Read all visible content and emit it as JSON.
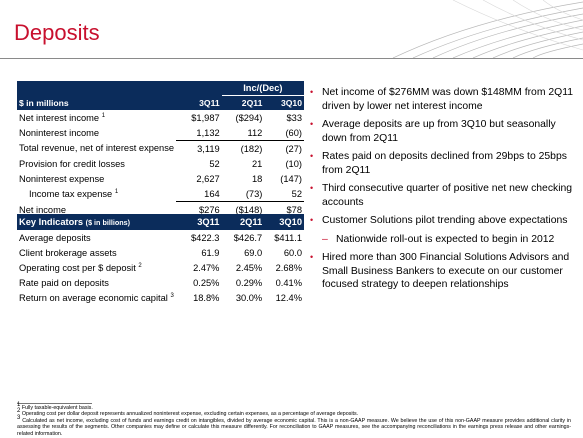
{
  "title": "Deposits",
  "colors": {
    "title": "#c8102e",
    "header_bg": "#0b2c5b",
    "bullet": "#c8102e"
  },
  "income_table": {
    "group_header": "Inc/(Dec)",
    "unit_label": "$ in millions",
    "columns": [
      "3Q11",
      "2Q11",
      "3Q10"
    ],
    "rows": [
      {
        "label": "Net interest income",
        "sup": "1",
        "values": [
          "$1,987",
          "($294)",
          "$33"
        ]
      },
      {
        "label": "Noninterest income",
        "sup": "",
        "values": [
          "1,132",
          "112",
          "(60)"
        ]
      },
      {
        "label": "Total revenue, net of interest expense",
        "sup": "",
        "values": [
          "3,119",
          "(182)",
          "(27)"
        ]
      },
      {
        "label": "Provision for credit losses",
        "sup": "",
        "values": [
          "52",
          "21",
          "(10)"
        ]
      },
      {
        "label": "Noninterest expense",
        "sup": "",
        "values": [
          "2,627",
          "18",
          "(147)"
        ]
      },
      {
        "label": "Income tax expense",
        "sup": "1",
        "values": [
          "164",
          "(73)",
          "52"
        ]
      },
      {
        "label": "Net income",
        "sup": "",
        "values": [
          "$276",
          "($148)",
          "$78"
        ]
      }
    ]
  },
  "indicators_table": {
    "header_label": "Key Indicators",
    "header_unit": "($ in billions)",
    "columns": [
      "3Q11",
      "2Q11",
      "3Q10"
    ],
    "rows": [
      {
        "label": "Average deposits",
        "sup": "",
        "values": [
          "$422.3",
          "$426.7",
          "$411.1"
        ]
      },
      {
        "label": "Client brokerage assets",
        "sup": "",
        "values": [
          "61.9",
          "69.0",
          "60.0"
        ]
      },
      {
        "label": "Operating cost per $ deposit",
        "sup": "2",
        "values": [
          "2.47%",
          "2.45%",
          "2.68%"
        ]
      },
      {
        "label": "Rate paid on deposits",
        "sup": "",
        "values": [
          "0.25%",
          "0.29%",
          "0.41%"
        ]
      },
      {
        "label": "Return on average economic capital",
        "sup": "3",
        "values": [
          "18.8%",
          "30.0%",
          "12.4%"
        ]
      }
    ]
  },
  "bullets": [
    "Net income of $276MM was down $148MM from 2Q11 driven by lower net interest income",
    "Average deposits are up from 3Q10 but seasonally down from 2Q11",
    "Rates paid on deposits declined from 29bps to 25bps from 2Q11",
    "Third consecutive quarter of positive net new checking accounts",
    "Customer Solutions pilot trending above expectations",
    "Hired more than 300 Financial Solutions Advisors and Small Business Bankers to execute on our customer focused strategy to deepen relationships"
  ],
  "sub_bullet": "Nationwide roll-out is expected to begin in 2012",
  "footnotes": [
    {
      "num": "1",
      "text": "Fully taxable-equivalent basis."
    },
    {
      "num": "2",
      "text": "Operating cost per dollar deposit represents annualized noninterest expense, excluding certain expenses, as a percentage of average deposits."
    },
    {
      "num": "3",
      "text": "Calculated as net income, excluding cost of funds and earnings credit on intangibles, divided by average economic capital. This is a non-GAAP measure. We believe the use of this non-GAAP measure provides additional clarity in assessing the results of the segments. Other companies may define or calculate this measure differently. For reconciliation to GAAP measures, see the accompanying reconciliations in the earnings press release and other earnings-related information."
    }
  ]
}
